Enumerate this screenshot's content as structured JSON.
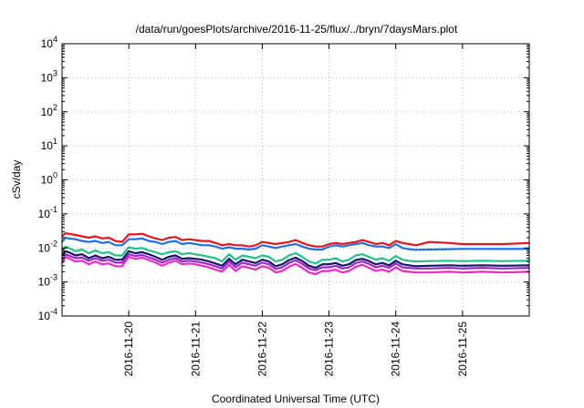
{
  "chart_data": {
    "type": "line",
    "title": "/data/run/goesPlots/archive/2016-11-25/flux/../bryn/7daysMars.plot",
    "xlabel": "Coordinated Universal Time (UTC)",
    "ylabel": "cSv/day",
    "y_scale": "log",
    "ylim": [
      0.0001,
      10000
    ],
    "xlim": [
      0,
      7
    ],
    "grid": true,
    "x_ticks": [
      {
        "x": 1,
        "label": "2016-11-20"
      },
      {
        "x": 2,
        "label": "2016-11-21"
      },
      {
        "x": 3,
        "label": "2016-11-22"
      },
      {
        "x": 4,
        "label": "2016-11-23"
      },
      {
        "x": 5,
        "label": "2016-11-24"
      },
      {
        "x": 6,
        "label": "2016-11-25"
      }
    ],
    "y_ticks": [
      {
        "value": 0.0001,
        "base": "10",
        "exp": "-4"
      },
      {
        "value": 0.001,
        "base": "10",
        "exp": "-3"
      },
      {
        "value": 0.01,
        "base": "10",
        "exp": "-2"
      },
      {
        "value": 0.1,
        "base": "10",
        "exp": "-1"
      },
      {
        "value": 1,
        "base": "10",
        "exp": "0"
      },
      {
        "value": 10,
        "base": "10",
        "exp": "1"
      },
      {
        "value": 100,
        "base": "10",
        "exp": "2"
      },
      {
        "value": 1000,
        "base": "10",
        "exp": "3"
      },
      {
        "value": 10000,
        "base": "10",
        "exp": "4"
      }
    ],
    "x": [
      0,
      0.05,
      0.1,
      0.2,
      0.3,
      0.4,
      0.5,
      0.6,
      0.7,
      0.8,
      0.9,
      1.0,
      1.1,
      1.2,
      1.3,
      1.4,
      1.5,
      1.6,
      1.7,
      1.8,
      1.9,
      2.0,
      2.1,
      2.2,
      2.3,
      2.4,
      2.5,
      2.6,
      2.7,
      2.8,
      2.9,
      3.0,
      3.1,
      3.2,
      3.3,
      3.4,
      3.5,
      3.6,
      3.7,
      3.8,
      3.9,
      4.0,
      4.1,
      4.2,
      4.3,
      4.4,
      4.5,
      4.6,
      4.7,
      4.8,
      4.9,
      5.0,
      5.1,
      5.2,
      5.3,
      5.5,
      5.8,
      6.0,
      6.3,
      6.6,
      7.0
    ],
    "series": [
      {
        "color": "#e8141c",
        "values": [
          0.022,
          0.027,
          0.026,
          0.024,
          0.022,
          0.02,
          0.022,
          0.019,
          0.02,
          0.016,
          0.015,
          0.025,
          0.025,
          0.026,
          0.022,
          0.019,
          0.017,
          0.02,
          0.021,
          0.017,
          0.018,
          0.017,
          0.016,
          0.016,
          0.014,
          0.012,
          0.013,
          0.012,
          0.012,
          0.011,
          0.012,
          0.015,
          0.014,
          0.013,
          0.014,
          0.015,
          0.017,
          0.014,
          0.012,
          0.011,
          0.011,
          0.013,
          0.014,
          0.013,
          0.014,
          0.015,
          0.017,
          0.015,
          0.013,
          0.014,
          0.012,
          0.016,
          0.014,
          0.013,
          0.012,
          0.015,
          0.014,
          0.013,
          0.013,
          0.013,
          0.014
        ]
      },
      {
        "color": "#1e6fe8",
        "values": [
          0.015,
          0.02,
          0.019,
          0.018,
          0.016,
          0.015,
          0.016,
          0.014,
          0.015,
          0.012,
          0.012,
          0.018,
          0.018,
          0.019,
          0.016,
          0.015,
          0.013,
          0.015,
          0.016,
          0.013,
          0.014,
          0.013,
          0.012,
          0.012,
          0.011,
          0.0095,
          0.0105,
          0.0095,
          0.0095,
          0.009,
          0.0095,
          0.012,
          0.011,
          0.01,
          0.011,
          0.012,
          0.013,
          0.011,
          0.0095,
          0.009,
          0.009,
          0.011,
          0.012,
          0.011,
          0.012,
          0.013,
          0.014,
          0.012,
          0.011,
          0.011,
          0.01,
          0.013,
          0.01,
          0.0092,
          0.0088,
          0.009,
          0.0092,
          0.0094,
          0.0094,
          0.0093,
          0.0094
        ]
      },
      {
        "color": "#22c08c",
        "values": [
          0.008,
          0.011,
          0.01,
          0.008,
          0.009,
          0.007,
          0.0085,
          0.007,
          0.0075,
          0.006,
          0.006,
          0.0105,
          0.0095,
          0.01,
          0.0085,
          0.0075,
          0.0065,
          0.0075,
          0.008,
          0.0065,
          0.007,
          0.0065,
          0.006,
          0.0055,
          0.005,
          0.004,
          0.0065,
          0.0045,
          0.006,
          0.0055,
          0.005,
          0.006,
          0.0055,
          0.004,
          0.0045,
          0.006,
          0.007,
          0.0055,
          0.004,
          0.0035,
          0.0045,
          0.0045,
          0.005,
          0.004,
          0.0045,
          0.006,
          0.0065,
          0.0055,
          0.0045,
          0.005,
          0.0042,
          0.0058,
          0.0045,
          0.0042,
          0.004,
          0.0041,
          0.0042,
          0.0041,
          0.0042,
          0.0041,
          0.0042
        ]
      },
      {
        "color": "#1a1464",
        "values": [
          0.006,
          0.008,
          0.0075,
          0.006,
          0.0065,
          0.005,
          0.006,
          0.005,
          0.0055,
          0.0045,
          0.0045,
          0.008,
          0.007,
          0.0075,
          0.0065,
          0.0055,
          0.0045,
          0.0055,
          0.006,
          0.0048,
          0.005,
          0.0048,
          0.0045,
          0.004,
          0.0035,
          0.003,
          0.0048,
          0.0033,
          0.0045,
          0.004,
          0.0036,
          0.0045,
          0.004,
          0.0029,
          0.0033,
          0.0044,
          0.0052,
          0.0041,
          0.003,
          0.0026,
          0.0033,
          0.0033,
          0.0036,
          0.003,
          0.0033,
          0.0044,
          0.0048,
          0.0041,
          0.0033,
          0.0036,
          0.0031,
          0.0042,
          0.0033,
          0.0031,
          0.0029,
          0.003,
          0.0031,
          0.003,
          0.0031,
          0.003,
          0.0031
        ]
      },
      {
        "color": "#9b28c8",
        "values": [
          0.0045,
          0.0065,
          0.006,
          0.005,
          0.0052,
          0.0042,
          0.005,
          0.0042,
          0.0045,
          0.0037,
          0.0037,
          0.0065,
          0.0058,
          0.0062,
          0.0053,
          0.0045,
          0.0037,
          0.0045,
          0.005,
          0.004,
          0.0042,
          0.004,
          0.0037,
          0.0033,
          0.0029,
          0.0025,
          0.004,
          0.0027,
          0.0037,
          0.0033,
          0.003,
          0.0037,
          0.0033,
          0.0024,
          0.0027,
          0.0036,
          0.0043,
          0.0034,
          0.0025,
          0.0022,
          0.0027,
          0.0027,
          0.003,
          0.0025,
          0.0027,
          0.0036,
          0.004,
          0.0034,
          0.0027,
          0.003,
          0.0026,
          0.0035,
          0.0027,
          0.0026,
          0.0025,
          0.0025,
          0.0026,
          0.0025,
          0.0026,
          0.0025,
          0.0026
        ]
      },
      {
        "color": "#ee28c8",
        "values": [
          0.0035,
          0.0055,
          0.005,
          0.004,
          0.0042,
          0.0033,
          0.004,
          0.0033,
          0.0035,
          0.0029,
          0.0029,
          0.0055,
          0.0048,
          0.0052,
          0.0044,
          0.0037,
          0.003,
          0.0037,
          0.0042,
          0.0033,
          0.0035,
          0.0033,
          0.003,
          0.0027,
          0.0023,
          0.002,
          0.0032,
          0.0021,
          0.0029,
          0.0026,
          0.0023,
          0.0029,
          0.0026,
          0.0019,
          0.0021,
          0.0028,
          0.0034,
          0.0026,
          0.0019,
          0.0017,
          0.0021,
          0.0021,
          0.0023,
          0.0019,
          0.0021,
          0.0028,
          0.0032,
          0.0026,
          0.0021,
          0.0023,
          0.002,
          0.0027,
          0.0021,
          0.002,
          0.0019,
          0.0019,
          0.002,
          0.0019,
          0.002,
          0.0019,
          0.002
        ]
      }
    ]
  }
}
